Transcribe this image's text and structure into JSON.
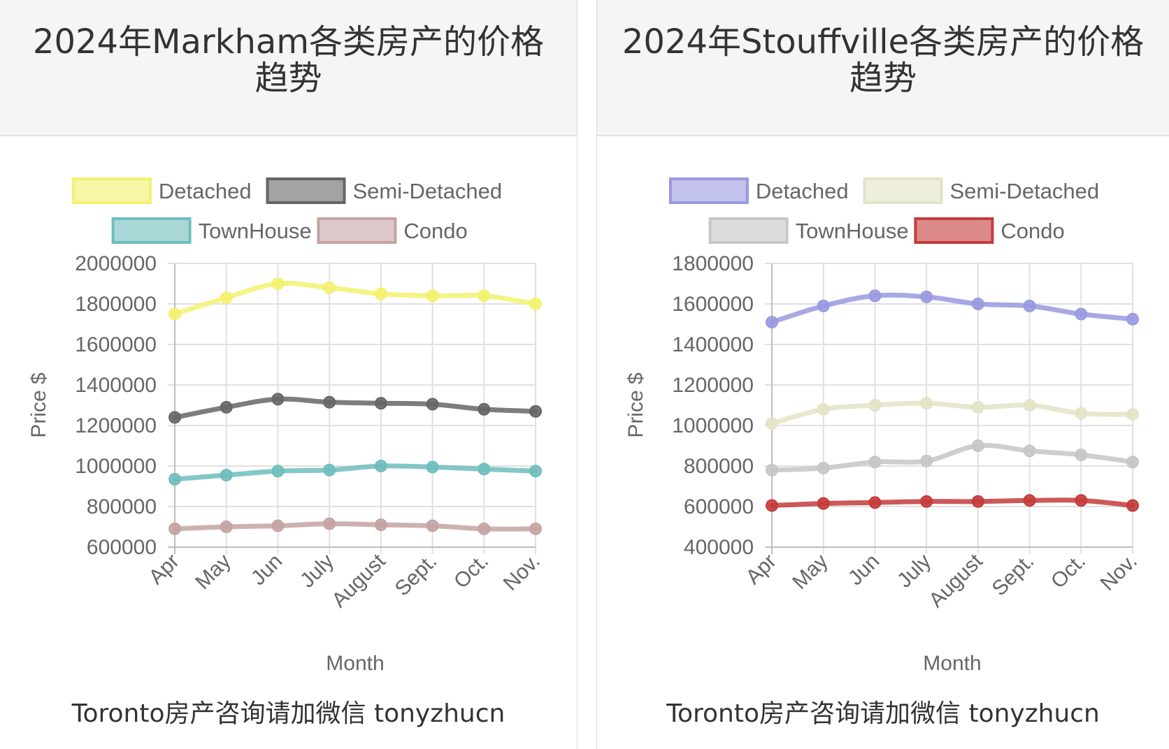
{
  "panels": [
    {
      "title": "2024年Markham各类房产的价格趋势",
      "footer": "Toronto房产咨询请加微信 tonyzhucn",
      "chart_data": {
        "type": "line",
        "categories": [
          "Apr",
          "May",
          "Jun",
          "July",
          "August",
          "Sept.",
          "Oct.",
          "Nov."
        ],
        "ylabel": "Price $",
        "xlabel": "Month",
        "ylim": [
          600000,
          2000000
        ],
        "yticks": [
          2000000,
          1800000,
          1600000,
          1400000,
          1200000,
          1000000,
          800000,
          600000
        ],
        "grid": true,
        "legend": "top",
        "series": [
          {
            "name": "Detached",
            "color": "#f2f26e",
            "values": [
              1750000,
              1830000,
              1900000,
              1880000,
              1850000,
              1840000,
              1840000,
              1800000
            ]
          },
          {
            "name": "Semi-Detached",
            "color": "#666666",
            "values": [
              1240000,
              1290000,
              1330000,
              1315000,
              1310000,
              1305000,
              1280000,
              1270000
            ]
          },
          {
            "name": "TownHouse",
            "color": "#6fbdbd",
            "values": [
              935000,
              955000,
              975000,
              980000,
              1000000,
              995000,
              985000,
              975000
            ]
          },
          {
            "name": "Condo",
            "color": "#c4a3a3",
            "values": [
              690000,
              700000,
              705000,
              715000,
              710000,
              705000,
              690000,
              690000
            ]
          }
        ]
      }
    },
    {
      "title": "2024年Stouffville各类房产的价格趋势",
      "footer": "Toronto房产咨询请加微信 tonyzhucn",
      "chart_data": {
        "type": "line",
        "categories": [
          "Apr",
          "May",
          "Jun",
          "July",
          "August",
          "Sept.",
          "Oct.",
          "Nov."
        ],
        "ylabel": "Price $",
        "xlabel": "Month",
        "ylim": [
          400000,
          1800000
        ],
        "yticks": [
          1800000,
          1600000,
          1400000,
          1200000,
          1000000,
          800000,
          600000,
          400000
        ],
        "grid": true,
        "legend": "top",
        "series": [
          {
            "name": "Detached",
            "color": "#9999e0",
            "values": [
              1510000,
              1590000,
              1640000,
              1635000,
              1600000,
              1590000,
              1550000,
              1525000
            ]
          },
          {
            "name": "Semi-Detached",
            "color": "#e3e3c6",
            "values": [
              1010000,
              1080000,
              1100000,
              1110000,
              1090000,
              1100000,
              1060000,
              1055000
            ]
          },
          {
            "name": "TownHouse",
            "color": "#c6c6c6",
            "values": [
              780000,
              790000,
              820000,
              825000,
              900000,
              875000,
              855000,
              820000
            ]
          },
          {
            "name": "Condo",
            "color": "#c43b3b",
            "values": [
              605000,
              615000,
              620000,
              625000,
              625000,
              630000,
              630000,
              605000
            ]
          }
        ]
      }
    }
  ]
}
